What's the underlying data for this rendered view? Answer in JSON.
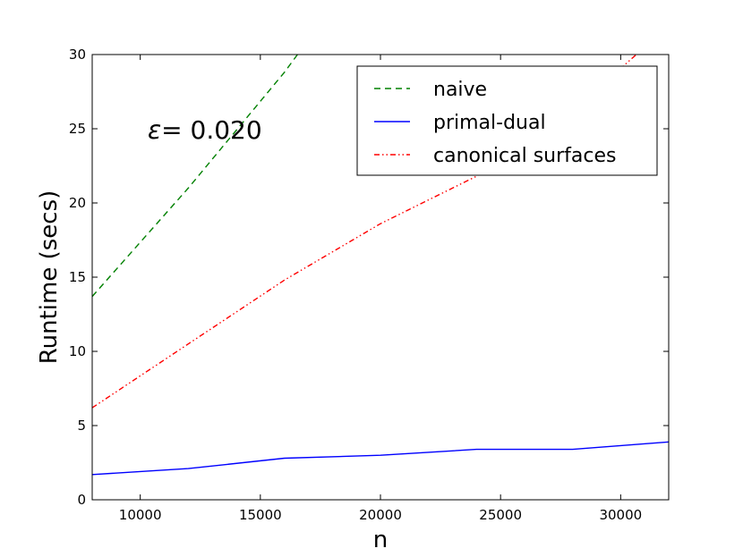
{
  "chart_data": {
    "type": "line",
    "xlabel": "n",
    "ylabel": "Runtime (secs)",
    "xlim": [
      8000,
      32000
    ],
    "ylim": [
      0,
      30
    ],
    "xticks": [
      10000,
      15000,
      20000,
      25000,
      30000
    ],
    "yticks": [
      0,
      5,
      10,
      15,
      20,
      25,
      30
    ],
    "grid": false,
    "legend_position": "top-right",
    "annotation": {
      "symbol": "ε",
      "text": "= 0.020"
    },
    "series": [
      {
        "name": "naive",
        "color": "#008000",
        "style": "dashed",
        "x": [
          8000,
          12000,
          16000,
          17000
        ],
        "y": [
          13.7,
          21.0,
          28.8,
          31.0
        ]
      },
      {
        "name": "primal-dual",
        "color": "#0000ff",
        "style": "solid",
        "x": [
          8000,
          12000,
          16000,
          20000,
          24000,
          28000,
          32000
        ],
        "y": [
          1.7,
          2.1,
          2.8,
          3.0,
          3.4,
          3.4,
          3.9
        ]
      },
      {
        "name": "canonical surfaces",
        "color": "#ff0000",
        "style": "dashdotdot",
        "x": [
          8000,
          12000,
          16000,
          20000,
          24000,
          28000,
          31000
        ],
        "y": [
          6.2,
          10.5,
          14.8,
          18.6,
          21.8,
          26.2,
          30.5
        ]
      }
    ]
  }
}
